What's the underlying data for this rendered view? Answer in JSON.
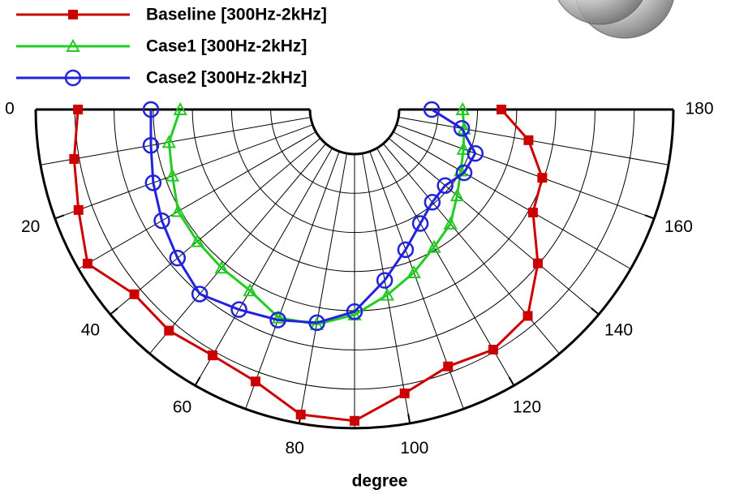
{
  "chart_data": {
    "type": "polar",
    "xlabel": "degree",
    "xlim": [
      0,
      180
    ],
    "xticks": [
      0,
      20,
      40,
      60,
      80,
      100,
      120,
      140,
      160,
      180
    ],
    "rlim": [
      0,
      7
    ],
    "rticks": [
      0,
      1,
      2,
      3,
      4,
      5,
      6,
      7
    ],
    "grid": true,
    "x": [
      0,
      10,
      20,
      30,
      40,
      50,
      60,
      70,
      80,
      90,
      100,
      110,
      120,
      130,
      140,
      150,
      160,
      170,
      180
    ],
    "series": [
      {
        "name": "Baseline [300Hz-2kHz]",
        "color": "#cc0000",
        "marker": "square",
        "values": [
          5.92,
          6.13,
          6.36,
          6.73,
          6.2,
          6.23,
          6.11,
          6.25,
          6.77,
          6.81,
          6.22,
          5.84,
          5.94,
          5.74,
          4.97,
          4.12,
          3.96,
          3.37,
          2.61
        ]
      },
      {
        "name": "Case1  [300Hz-2kHz]",
        "color": "#22cc22",
        "marker": "triangle",
        "values": [
          3.31,
          3.67,
          3.81,
          4.06,
          4.1,
          4.14,
          4.2,
          4.52,
          4.43,
          4.1,
          3.67,
          3.29,
          2.92,
          2.67,
          2.28,
          1.99,
          1.82,
          1.7,
          1.62
        ]
      },
      {
        "name": "Case2  [300Hz-2kHz]",
        "color": "#2222dd",
        "marker": "circle",
        "values": [
          4.06,
          4.14,
          4.33,
          4.54,
          4.76,
          5.01,
          4.76,
          4.58,
          4.39,
          4.02,
          3.29,
          2.67,
          2.22,
          1.95,
          1.88,
          2.09,
          2.14,
          1.64,
          0.83
        ]
      }
    ]
  }
}
